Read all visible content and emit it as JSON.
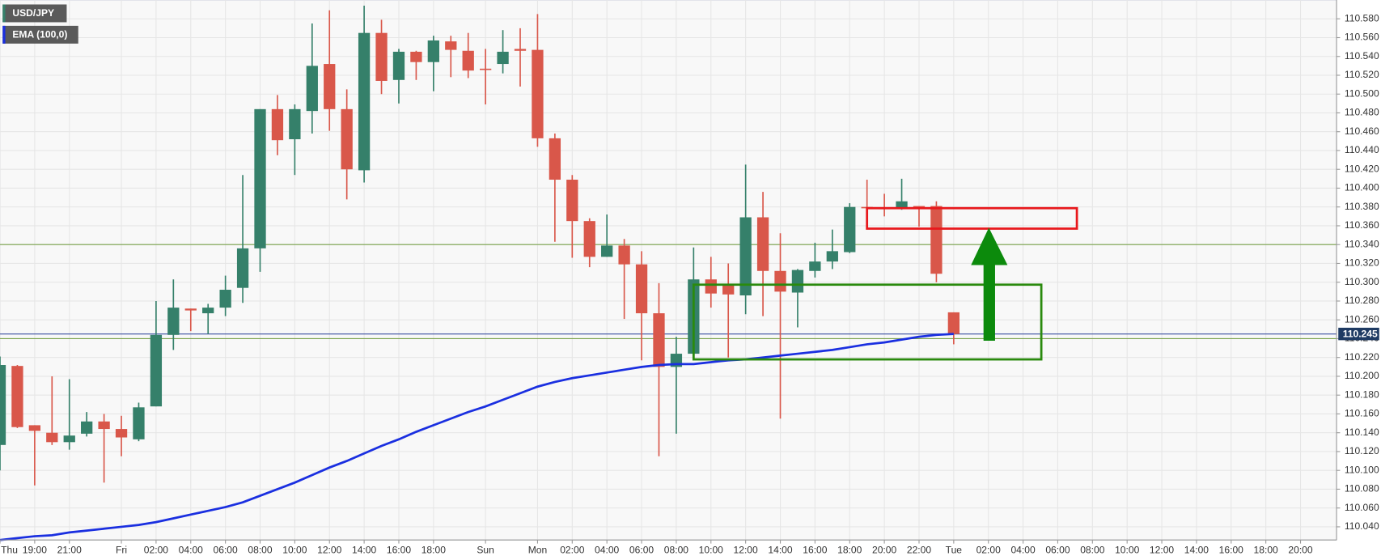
{
  "chart_data": {
    "type": "candlestick",
    "categories": [
      "Thu",
      null,
      "19:00",
      null,
      "21:00",
      null,
      null,
      "Fri",
      null,
      "02:00",
      null,
      "04:00",
      null,
      "06:00",
      null,
      "08:00",
      null,
      "10:00",
      null,
      "12:00",
      null,
      "14:00",
      null,
      "16:00",
      null,
      "18:00",
      null,
      null,
      "Sun",
      null,
      null,
      "Mon",
      null,
      "02:00",
      null,
      "04:00",
      null,
      "06:00",
      null,
      "08:00",
      null,
      "10:00",
      null,
      "12:00",
      null,
      "14:00",
      null,
      "16:00",
      null,
      "18:00",
      null,
      "20:00",
      null,
      "22:00",
      null,
      "Tue",
      null,
      "02:00",
      null,
      "04:00",
      null,
      "06:00",
      null,
      "08:00",
      null,
      "10:00",
      null,
      "12:00",
      null,
      "14:00",
      null,
      "16:00",
      null,
      "18:00",
      null,
      "20:00",
      null
    ],
    "candles": {
      "name": "USD/JPY",
      "up_color": "#35806a",
      "down_color": "#d9574a",
      "open": [
        110.127,
        110.211,
        110.148,
        110.14,
        110.13,
        110.139,
        110.152,
        110.144,
        110.133,
        110.168,
        110.244,
        110.272,
        110.267,
        110.273,
        110.294,
        110.336,
        110.484,
        110.452,
        110.482,
        110.532,
        110.484,
        110.419,
        110.565,
        110.515,
        110.545,
        110.534,
        110.556,
        110.546,
        110.527,
        110.532,
        110.548,
        110.547,
        110.453,
        110.409,
        110.365,
        110.327,
        110.339,
        110.319,
        110.267,
        110.21,
        110.224,
        110.303,
        110.297,
        110.286,
        110.369,
        110.312,
        110.289,
        110.312,
        110.322,
        110.332,
        110.38,
        110.379,
        110.378,
        110.381,
        110.381,
        110.268,
        null,
        null,
        null,
        null,
        null,
        null,
        null,
        null,
        null,
        null,
        null,
        null,
        null,
        null,
        null,
        null,
        null,
        null,
        null,
        null,
        null
      ],
      "high": [
        110.221,
        110.212,
        110.148,
        110.2,
        110.197,
        110.162,
        110.16,
        110.158,
        110.172,
        110.28,
        110.303,
        110.272,
        110.277,
        110.307,
        110.414,
        110.484,
        110.499,
        110.489,
        110.575,
        110.589,
        110.505,
        110.594,
        110.579,
        110.548,
        110.546,
        110.562,
        110.562,
        110.565,
        110.548,
        110.568,
        110.57,
        110.585,
        110.458,
        110.414,
        110.368,
        110.372,
        110.346,
        110.333,
        110.299,
        110.242,
        110.337,
        110.327,
        110.32,
        110.425,
        110.396,
        110.352,
        110.314,
        110.342,
        110.356,
        110.384,
        110.409,
        110.394,
        110.41,
        110.381,
        110.386,
        110.268,
        null,
        null,
        null,
        null,
        null,
        null,
        null,
        null,
        null,
        null,
        null,
        null,
        null,
        null,
        null,
        null,
        null,
        null,
        null,
        null,
        null
      ],
      "low": [
        110.1,
        110.145,
        110.084,
        110.127,
        110.122,
        110.136,
        110.087,
        110.115,
        110.131,
        110.168,
        110.228,
        110.248,
        110.245,
        110.264,
        110.278,
        110.311,
        110.435,
        110.414,
        110.458,
        110.461,
        110.388,
        110.406,
        110.5,
        110.49,
        110.515,
        110.503,
        110.518,
        110.517,
        110.489,
        110.522,
        110.508,
        110.444,
        110.343,
        110.326,
        110.316,
        110.327,
        110.261,
        110.217,
        110.115,
        110.139,
        110.221,
        110.273,
        110.22,
        110.266,
        110.264,
        110.155,
        110.252,
        110.305,
        110.314,
        110.331,
        110.365,
        110.37,
        110.377,
        110.359,
        110.3,
        110.234,
        null,
        null,
        null,
        null,
        null,
        null,
        null,
        null,
        null,
        null,
        null,
        null,
        null,
        null,
        null,
        null,
        null,
        null,
        null,
        null,
        null
      ],
      "close": [
        110.212,
        110.146,
        110.142,
        110.13,
        110.137,
        110.152,
        110.144,
        110.135,
        110.167,
        110.244,
        110.273,
        110.27,
        110.273,
        110.292,
        110.336,
        110.484,
        110.451,
        110.484,
        110.53,
        110.484,
        110.42,
        110.565,
        110.514,
        110.545,
        110.534,
        110.557,
        110.547,
        110.525,
        110.527,
        110.545,
        110.546,
        110.453,
        110.409,
        110.365,
        110.327,
        110.339,
        110.319,
        110.267,
        110.21,
        110.224,
        110.303,
        110.288,
        110.287,
        110.369,
        110.312,
        110.29,
        110.313,
        110.322,
        110.333,
        110.38,
        110.379,
        110.378,
        110.386,
        110.38,
        110.309,
        110.245,
        null,
        null,
        null,
        null,
        null,
        null,
        null,
        null,
        null,
        null,
        null,
        null,
        null,
        null,
        null,
        null,
        null,
        null,
        null,
        null,
        null
      ]
    },
    "series": [
      {
        "name": "EMA (100,0)",
        "color": "#1a2fe0",
        "values": [
          110.026,
          110.028,
          110.03,
          110.031,
          110.034,
          110.036,
          110.038,
          110.04,
          110.042,
          110.045,
          110.049,
          110.053,
          110.057,
          110.061,
          110.066,
          110.073,
          110.08,
          110.087,
          110.095,
          110.103,
          110.11,
          110.118,
          110.126,
          110.133,
          110.141,
          110.148,
          110.155,
          110.162,
          110.168,
          110.175,
          110.182,
          110.189,
          110.194,
          110.198,
          110.201,
          110.204,
          110.207,
          110.21,
          110.212,
          110.213,
          110.213,
          110.215,
          110.217,
          110.218,
          110.22,
          110.222,
          110.224,
          110.226,
          110.228,
          110.231,
          110.234,
          110.236,
          110.239,
          110.242,
          110.244,
          110.245,
          null,
          null,
          null,
          null,
          null,
          null,
          null,
          null,
          null,
          null,
          null,
          null,
          null,
          null,
          null,
          null,
          null,
          null,
          null,
          null,
          null
        ]
      }
    ],
    "last_price": 110.245,
    "hlines": [
      110.34,
      110.24
    ],
    "hline_color": "#79a24a",
    "ylim": [
      110.026,
      110.6
    ],
    "yticks": [
      {
        "value": 110.04,
        "label": "110.040"
      },
      {
        "value": 110.06,
        "label": "110.060"
      },
      {
        "value": 110.08,
        "label": "110.080"
      },
      {
        "value": 110.1,
        "label": "110.100"
      },
      {
        "value": 110.12,
        "label": "110.120"
      },
      {
        "value": 110.14,
        "label": "110.140"
      },
      {
        "value": 110.16,
        "label": "110.160"
      },
      {
        "value": 110.18,
        "label": "110.180"
      },
      {
        "value": 110.2,
        "label": "110.200"
      },
      {
        "value": 110.22,
        "label": "110.220"
      },
      {
        "value": 110.24,
        "label": "110.240"
      },
      {
        "value": 110.26,
        "label": "110.260"
      },
      {
        "value": 110.28,
        "label": "110.280"
      },
      {
        "value": 110.3,
        "label": "110.300"
      },
      {
        "value": 110.32,
        "label": "110.320"
      },
      {
        "value": 110.34,
        "label": "110.340"
      },
      {
        "value": 110.36,
        "label": "110.360"
      },
      {
        "value": 110.38,
        "label": "110.380"
      },
      {
        "value": 110.4,
        "label": "110.400"
      },
      {
        "value": 110.42,
        "label": "110.420"
      },
      {
        "value": 110.44,
        "label": "110.440"
      },
      {
        "value": 110.46,
        "label": "110.460"
      },
      {
        "value": 110.48,
        "label": "110.480"
      },
      {
        "value": 110.5,
        "label": "110.500"
      },
      {
        "value": 110.52,
        "label": "110.520"
      },
      {
        "value": 110.54,
        "label": "110.540"
      },
      {
        "value": 110.56,
        "label": "110.560"
      },
      {
        "value": 110.58,
        "label": "110.580"
      }
    ],
    "grid": true
  }
}
